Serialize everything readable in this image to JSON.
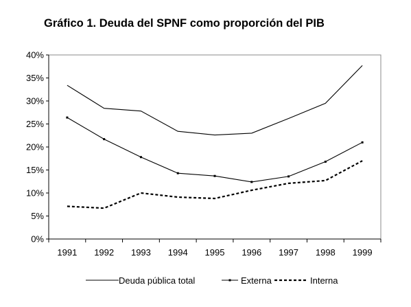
{
  "chart_data": {
    "type": "line",
    "title": "Gráfico 1. Deuda del SPNF como proporción del PIB",
    "xlabel": "",
    "ylabel": "",
    "categories": [
      "1991",
      "1992",
      "1993",
      "1994",
      "1995",
      "1996",
      "1997",
      "1998",
      "1999"
    ],
    "ylim": [
      0,
      0.4
    ],
    "yticks": [
      0,
      0.05,
      0.1,
      0.15,
      0.2,
      0.25,
      0.3,
      0.35,
      0.4
    ],
    "ytick_labels": [
      "0%",
      "5%",
      "10%",
      "15%",
      "20%",
      "25%",
      "30%",
      "35%",
      "40%"
    ],
    "grid": false,
    "legend_position": "bottom",
    "series": [
      {
        "name": "Deuda pública total",
        "values": [
          0.334,
          0.284,
          0.278,
          0.234,
          0.226,
          0.23,
          0.262,
          0.295,
          0.377
        ],
        "style": "solid",
        "markers": false,
        "color": "#000000"
      },
      {
        "name": "Externa",
        "values": [
          0.264,
          0.217,
          0.178,
          0.143,
          0.137,
          0.124,
          0.136,
          0.168,
          0.21
        ],
        "style": "solid",
        "markers": true,
        "color": "#000000"
      },
      {
        "name": "Interna",
        "values": [
          0.071,
          0.067,
          0.1,
          0.091,
          0.088,
          0.106,
          0.121,
          0.127,
          0.17
        ],
        "style": "dashed",
        "markers": false,
        "color": "#000000"
      }
    ]
  }
}
